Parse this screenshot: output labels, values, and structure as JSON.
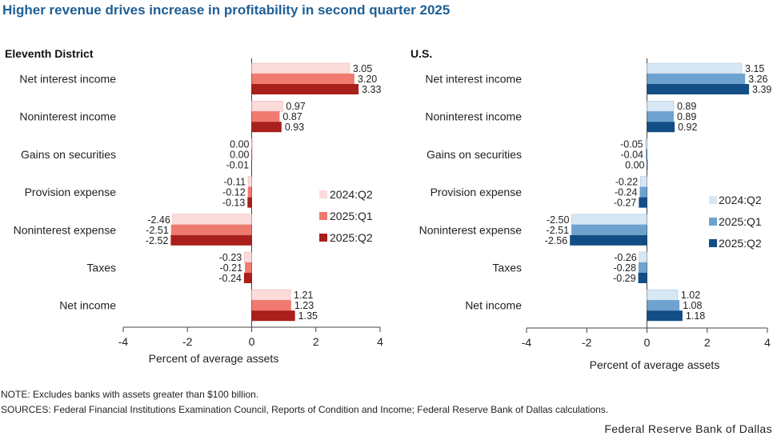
{
  "title": "Higher revenue drives increase in profitability in second quarter 2025",
  "note": "NOTE:  Excludes  banks with  assets greater than $100 billion.",
  "sources": "SOURCES:  Federal Financial Institutions Examination  Council, Reports of Condition and Income;  Federal Reserve Bank of Dallas calculations.",
  "credit": "Federal Reserve Bank of Dallas",
  "colors": {
    "district": [
      "#fcdbdb",
      "#f07a70",
      "#a91f1b"
    ],
    "us": [
      "#d7e7f4",
      "#6ea3cf",
      "#124e85"
    ]
  },
  "chart_data": [
    {
      "type": "bar",
      "orientation": "horizontal",
      "title": "Eleventh District",
      "xlabel": "Percent of average assets",
      "xlim": [
        -4,
        4
      ],
      "xticks": [
        "-4",
        "-2",
        "0",
        "2",
        "4"
      ],
      "categories": [
        "Net interest income",
        "Noninterest income",
        "Gains on securities",
        "Provision expense",
        "Noninterest expense",
        "Taxes",
        "Net income"
      ],
      "series": [
        {
          "name": "2024:Q2",
          "values": [
            3.05,
            0.97,
            0.0,
            -0.11,
            -2.46,
            -0.23,
            1.21
          ],
          "labels": [
            "3.05",
            "0.97",
            "0.00",
            "-0.11",
            "-2.46",
            "-0.23",
            "1.21"
          ]
        },
        {
          "name": "2025:Q1",
          "values": [
            3.2,
            0.87,
            0.0,
            -0.12,
            -2.51,
            -0.21,
            1.23
          ],
          "labels": [
            "3.20",
            "0.87",
            "0.00",
            "-0.12",
            "-2.51",
            "-0.21",
            "1.23"
          ]
        },
        {
          "name": "2025:Q2",
          "values": [
            3.33,
            0.93,
            -0.01,
            -0.13,
            -2.52,
            -0.24,
            1.35
          ],
          "labels": [
            "3.33",
            "0.93",
            "-0.01",
            "-0.13",
            "-2.52",
            "-0.24",
            "1.35"
          ]
        }
      ],
      "legend_position": "right"
    },
    {
      "type": "bar",
      "orientation": "horizontal",
      "title": "U.S.",
      "xlabel": "Percent of average assets",
      "xlim": [
        -4,
        4
      ],
      "xticks": [
        "-4",
        "-2",
        "0",
        "2",
        "4"
      ],
      "categories": [
        "Net interest income",
        "Noninterest income",
        "Gains on securities",
        "Provision expense",
        "Noninterest expense",
        "Taxes",
        "Net income"
      ],
      "series": [
        {
          "name": "2024:Q2",
          "values": [
            3.15,
            0.89,
            -0.05,
            -0.22,
            -2.5,
            -0.26,
            1.02
          ],
          "labels": [
            "3.15",
            "0.89",
            "-0.05",
            "-0.22",
            "-2.50",
            "-0.26",
            "1.02"
          ]
        },
        {
          "name": "2025:Q1",
          "values": [
            3.26,
            0.89,
            -0.04,
            -0.24,
            -2.51,
            -0.28,
            1.08
          ],
          "labels": [
            "3.26",
            "0.89",
            "-0.04",
            "-0.24",
            "-2.51",
            "-0.28",
            "1.08"
          ]
        },
        {
          "name": "2025:Q2",
          "values": [
            3.39,
            0.92,
            0.0,
            -0.27,
            -2.56,
            -0.29,
            1.18
          ],
          "labels": [
            "3.39",
            "0.92",
            "0.00",
            "-0.27",
            "-2.56",
            "-0.29",
            "1.18"
          ]
        }
      ],
      "legend_position": "right"
    }
  ]
}
